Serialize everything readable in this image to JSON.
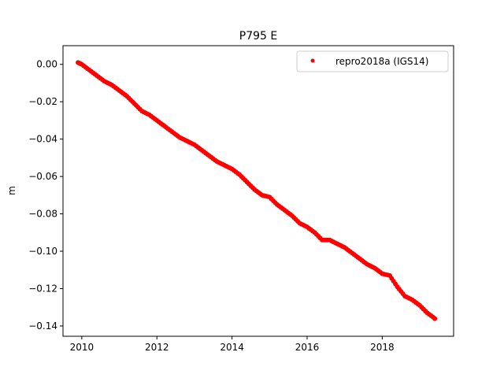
{
  "chart_data": {
    "type": "scatter",
    "title": "P795 E",
    "xlabel": "",
    "ylabel": "m",
    "xlim": [
      2009.5,
      2019.9
    ],
    "ylim": [
      -0.1455,
      0.01
    ],
    "xticks": [
      2010,
      2012,
      2014,
      2016,
      2018
    ],
    "yticks": [
      0.0,
      -0.02,
      -0.04,
      -0.06,
      -0.08,
      -0.1,
      -0.12,
      -0.14
    ],
    "xtick_labels": [
      "2010",
      "2012",
      "2014",
      "2016",
      "2018"
    ],
    "ytick_labels": [
      "0.00",
      "−0.02",
      "−0.04",
      "−0.06",
      "−0.08",
      "−0.10",
      "−0.12",
      "−0.14"
    ],
    "grid": false,
    "legend_position": "top-right",
    "series": [
      {
        "name": "repro2018a (IGS14)",
        "color": "#ff0000",
        "marker": "circle",
        "x": [
          2009.9,
          2010.0,
          2010.2,
          2010.4,
          2010.6,
          2010.8,
          2011.0,
          2011.2,
          2011.4,
          2011.6,
          2011.8,
          2012.0,
          2012.2,
          2012.4,
          2012.6,
          2012.8,
          2013.0,
          2013.2,
          2013.4,
          2013.6,
          2013.8,
          2014.0,
          2014.2,
          2014.4,
          2014.6,
          2014.8,
          2015.0,
          2015.2,
          2015.4,
          2015.6,
          2015.8,
          2016.0,
          2016.2,
          2016.4,
          2016.6,
          2016.8,
          2017.0,
          2017.2,
          2017.4,
          2017.6,
          2017.8,
          2018.0,
          2018.2,
          2018.4,
          2018.6,
          2018.8,
          2019.0,
          2019.2,
          2019.4
        ],
        "y": [
          0.001,
          0.0,
          -0.003,
          -0.006,
          -0.009,
          -0.011,
          -0.014,
          -0.017,
          -0.021,
          -0.025,
          -0.027,
          -0.03,
          -0.033,
          -0.036,
          -0.039,
          -0.041,
          -0.043,
          -0.046,
          -0.049,
          -0.052,
          -0.054,
          -0.056,
          -0.059,
          -0.063,
          -0.067,
          -0.07,
          -0.071,
          -0.075,
          -0.078,
          -0.081,
          -0.085,
          -0.087,
          -0.09,
          -0.094,
          -0.094,
          -0.096,
          -0.098,
          -0.101,
          -0.104,
          -0.107,
          -0.109,
          -0.112,
          -0.113,
          -0.119,
          -0.124,
          -0.126,
          -0.129,
          -0.133,
          -0.136
        ]
      }
    ]
  }
}
